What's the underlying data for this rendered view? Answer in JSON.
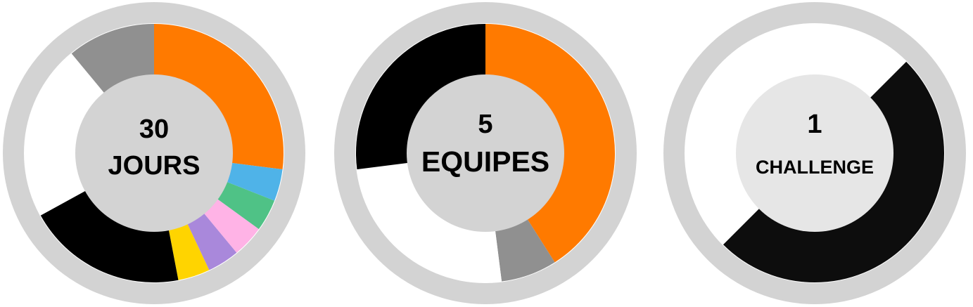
{
  "colors": {
    "frame": "#d3d3d3",
    "page": "#ffffff"
  },
  "chart_data": [
    {
      "type": "pie",
      "value": "30",
      "label": "JOURS",
      "center_color": "#d3d3d3",
      "slices": [
        {
          "value": 27,
          "color": "#ff7a00"
        },
        {
          "value": 4,
          "color": "#4fb3e8"
        },
        {
          "value": 4,
          "color": "#4fc286"
        },
        {
          "value": 4,
          "color": "#ffb3e6"
        },
        {
          "value": 4,
          "color": "#a988db"
        },
        {
          "value": 4,
          "color": "#ffd400"
        },
        {
          "value": 20,
          "color": "#000000"
        },
        {
          "value": 22,
          "color": "#ffffff"
        },
        {
          "value": 11,
          "color": "#909090"
        }
      ]
    },
    {
      "type": "pie",
      "value": "5",
      "label": "EQUIPES",
      "center_color": "#d3d3d3",
      "slices": [
        {
          "value": 41,
          "color": "#ff7a00"
        },
        {
          "value": 7,
          "color": "#909090"
        },
        {
          "value": 25,
          "color": "#ffffff"
        },
        {
          "value": 27,
          "color": "#000000"
        }
      ]
    },
    {
      "type": "pie",
      "value": "1",
      "label": "CHALLENGE",
      "center_color": "#e6e6e6",
      "slices": [
        {
          "value": 12.5,
          "color": "#ffffff"
        },
        {
          "value": 50,
          "color": "#0d0d0d"
        },
        {
          "value": 37.5,
          "color": "#ffffff"
        }
      ]
    }
  ]
}
